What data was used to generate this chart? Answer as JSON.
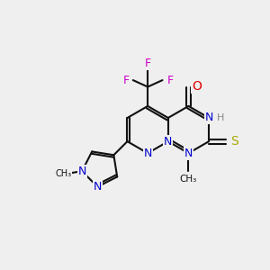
{
  "bg_color": "#efefef",
  "bond_color": "#111111",
  "N_color": "#0000cc",
  "O_color": "#dd0000",
  "S_color": "#aaaa00",
  "F_color": "#cc00cc",
  "H_color": "#888888",
  "lw": 1.5,
  "fs": 9.0,
  "xlim": [
    0,
    10
  ],
  "ylim": [
    0,
    10
  ]
}
